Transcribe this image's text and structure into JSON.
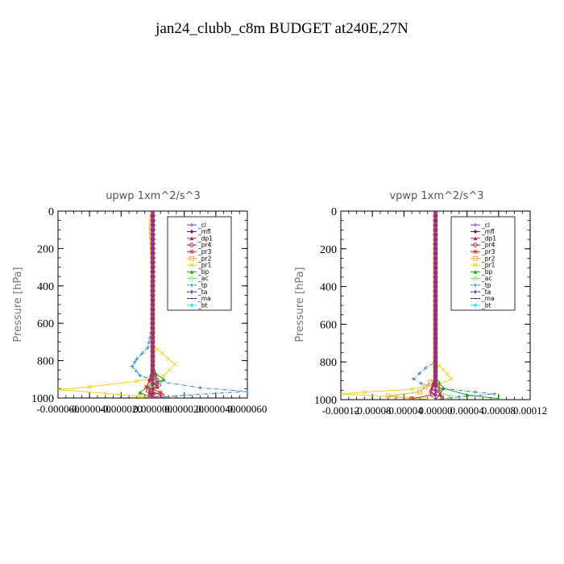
{
  "title": "jan24_clubb_c8m  BUDGET at240E,27N",
  "legend_names": [
    "_cl",
    "_mfl",
    "_dp1",
    "_pr4",
    "_pr3",
    "_pr2",
    "_pr1",
    "_bp",
    "_ac",
    "_tp",
    "_ta",
    "_ma",
    "_bt"
  ],
  "colors": {
    "_cl": "#7d3fb0",
    "_mfl": "#7a0f4f",
    "_dp1": "#a0304a",
    "_pr4": "#c81e52",
    "_pr3": "#e23030",
    "_pr2": "#f2a93a",
    "_pr1": "#f2d21e",
    "_bp": "#1aa61a",
    "_ac": "#8ee060",
    "_tp": "#2c86c4",
    "_ta": "#1b2fb0",
    "_ma": "#2a2a80",
    "_bt": "#1fe0f2"
  },
  "chart_data": [
    {
      "type": "line",
      "title": "upwp   1xm^2/s^3",
      "ylabel": "Pressure [hPa]",
      "xlim": [
        -6e-05,
        6e-05
      ],
      "ylim": [
        1000,
        0
      ],
      "xticks": [
        "-0.000060",
        "-0.000040",
        "-0.000020",
        "0.000000",
        "0.000020",
        "0.000040",
        "0.000060"
      ],
      "yticks": [
        "0",
        "200",
        "400",
        "600",
        "800",
        "1000"
      ],
      "legend_position": "top-right",
      "series": [
        {
          "name": "_cl",
          "points": [
            [
              0,
              0
            ],
            [
              0,
              700
            ],
            [
              0,
              900
            ],
            [
              0,
              1000
            ]
          ]
        },
        {
          "name": "_mfl",
          "points": [
            [
              0,
              0
            ],
            [
              0,
              700
            ],
            [
              0,
              1000
            ]
          ]
        },
        {
          "name": "_dp1",
          "points": [
            [
              0,
              0
            ],
            [
              0,
              850
            ],
            [
              -2e-06,
              900
            ],
            [
              3e-06,
              940
            ],
            [
              -2e-06,
              970
            ],
            [
              0,
              1000
            ]
          ]
        },
        {
          "name": "_pr4",
          "points": [
            [
              0,
              0
            ],
            [
              0,
              850
            ],
            [
              4e-06,
              930
            ],
            [
              -3e-06,
              960
            ],
            [
              6e-06,
              985
            ],
            [
              0,
              1000
            ]
          ]
        },
        {
          "name": "_pr3",
          "points": [
            [
              0,
              0
            ],
            [
              0,
              880
            ],
            [
              -4e-06,
              940
            ],
            [
              5e-06,
              970
            ],
            [
              -2e-06,
              990
            ]
          ]
        },
        {
          "name": "_pr2",
          "points": [
            [
              0,
              0
            ],
            [
              -1e-06,
              80
            ],
            [
              0,
              250
            ],
            [
              0,
              600
            ],
            [
              0,
              1000
            ]
          ]
        },
        {
          "name": "_pr1",
          "points": [
            [
              0,
              0
            ],
            [
              0,
              720
            ],
            [
              6e-06,
              760
            ],
            [
              1.4e-05,
              820
            ],
            [
              7e-06,
              880
            ],
            [
              -1e-05,
              910
            ],
            [
              -4e-05,
              940
            ],
            [
              -6e-05,
              955
            ],
            [
              -3e-05,
              975
            ],
            [
              -8e-06,
              990
            ],
            [
              0,
              1000
            ]
          ]
        },
        {
          "name": "_bp",
          "points": [
            [
              0,
              0
            ],
            [
              0,
              830
            ],
            [
              2e-06,
              870
            ],
            [
              7e-06,
              900
            ],
            [
              -3e-06,
              940
            ],
            [
              -8e-06,
              970
            ],
            [
              -2e-06,
              995
            ]
          ]
        },
        {
          "name": "_ac",
          "points": [
            [
              0,
              0
            ],
            [
              0,
              850
            ],
            [
              -2e-06,
              940
            ],
            [
              2e-06,
              980
            ]
          ]
        },
        {
          "name": "_tp",
          "points": [
            [
              1e-06,
              0
            ],
            [
              1e-06,
              300
            ],
            [
              0,
              600
            ],
            [
              -3e-06,
              730
            ],
            [
              -1e-05,
              790
            ],
            [
              -1.3e-05,
              830
            ],
            [
              -8e-06,
              880
            ],
            [
              3e-06,
              910
            ],
            [
              3e-05,
              945
            ],
            [
              6e-05,
              965
            ],
            [
              2e-05,
              985
            ],
            [
              0,
              1000
            ]
          ]
        },
        {
          "name": "_ta",
          "points": [
            [
              0,
              0
            ],
            [
              0,
              900
            ],
            [
              -1e-06,
              960
            ],
            [
              0,
              1000
            ]
          ]
        },
        {
          "name": "_ma",
          "points": [
            [
              0,
              0
            ],
            [
              0,
              1000
            ]
          ]
        },
        {
          "name": "_bt",
          "points": [
            [
              0,
              0
            ],
            [
              0,
              1000
            ]
          ]
        }
      ]
    },
    {
      "type": "line",
      "title": "vpwp   1xm^2/s^3",
      "ylabel": "Pressure [hPa]",
      "xlim": [
        -0.00012,
        0.00012
      ],
      "ylim": [
        1000,
        0
      ],
      "xticks": [
        "-0.00012",
        "-0.00008",
        "-0.00004",
        "0.00000",
        "0.00004",
        "0.00008",
        "0.00012"
      ],
      "yticks": [
        "0",
        "200",
        "400",
        "600",
        "800",
        "1000"
      ],
      "legend_position": "top-right",
      "series": [
        {
          "name": "_cl",
          "points": [
            [
              0,
              0
            ],
            [
              0,
              700
            ],
            [
              0,
              1000
            ]
          ]
        },
        {
          "name": "_mfl",
          "points": [
            [
              0,
              0
            ],
            [
              0,
              1000
            ]
          ]
        },
        {
          "name": "_dp1",
          "points": [
            [
              0,
              0
            ],
            [
              0,
              880
            ],
            [
              -5e-06,
              940
            ],
            [
              6e-06,
              970
            ],
            [
              0,
              1000
            ]
          ]
        },
        {
          "name": "_pr4",
          "points": [
            [
              0,
              0
            ],
            [
              0,
              900
            ],
            [
              6e-06,
              950
            ],
            [
              -4e-06,
              975
            ],
            [
              -3e-05,
              995
            ]
          ]
        },
        {
          "name": "_pr3",
          "points": [
            [
              0,
              0
            ],
            [
              0,
              900
            ],
            [
              -6e-06,
              960
            ],
            [
              8e-06,
              985
            ]
          ]
        },
        {
          "name": "_pr2",
          "points": [
            [
              0,
              0
            ],
            [
              0,
              880
            ],
            [
              -2e-05,
              960
            ],
            [
              -6e-05,
              980
            ],
            [
              -3e-05,
              995
            ]
          ]
        },
        {
          "name": "_pr1",
          "points": [
            [
              0,
              0
            ],
            [
              0,
              800
            ],
            [
              1e-05,
              840
            ],
            [
              2e-05,
              890
            ],
            [
              5e-06,
              920
            ],
            [
              -3e-05,
              945
            ],
            [
              -9e-05,
              960
            ],
            [
              -0.00012,
              970
            ],
            [
              -5e-05,
              985
            ],
            [
              0,
              1000
            ]
          ]
        },
        {
          "name": "_bp",
          "points": [
            [
              0,
              0
            ],
            [
              0,
              880
            ],
            [
              1e-05,
              940
            ],
            [
              4e-05,
              975
            ],
            [
              8e-05,
              995
            ]
          ]
        },
        {
          "name": "_ac",
          "points": [
            [
              0,
              0
            ],
            [
              0,
              900
            ],
            [
              5e-06,
              960
            ],
            [
              2e-05,
              985
            ]
          ]
        },
        {
          "name": "_tp",
          "points": [
            [
              0,
              0
            ],
            [
              0,
              800
            ],
            [
              -1.2e-05,
              830
            ],
            [
              -2e-05,
              860
            ],
            [
              -2.8e-05,
              890
            ],
            [
              -1.8e-05,
              915
            ],
            [
              1e-05,
              940
            ],
            [
              5e-05,
              960
            ],
            [
              7.5e-05,
              970
            ],
            [
              3e-05,
              985
            ],
            [
              0,
              1000
            ]
          ]
        },
        {
          "name": "_ta",
          "points": [
            [
              0,
              0
            ],
            [
              0,
              1000
            ]
          ]
        },
        {
          "name": "_ma",
          "points": [
            [
              0,
              0
            ],
            [
              0,
              1000
            ]
          ]
        },
        {
          "name": "_bt",
          "points": [
            [
              0,
              0
            ],
            [
              0,
              1000
            ]
          ]
        }
      ]
    }
  ]
}
